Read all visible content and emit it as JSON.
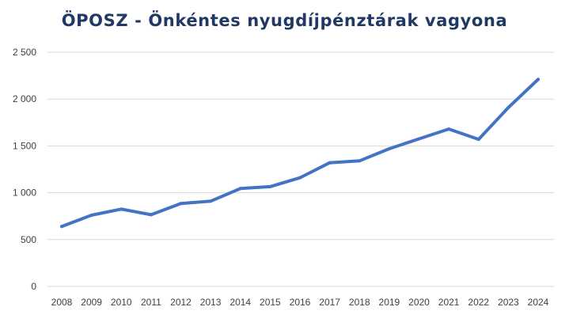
{
  "chart_data": {
    "type": "line",
    "title": "ÖPOSZ - Önkéntes nyugdíjpénztárak vagyona",
    "xlabel": "",
    "ylabel": "",
    "ylim": [
      0,
      2500
    ],
    "yticks": [
      0,
      500,
      1000,
      1500,
      2000,
      2500
    ],
    "ytick_labels": [
      "0",
      "500",
      "1 000",
      "1 500",
      "2 000",
      "2 500"
    ],
    "grid": "horizontal",
    "legend": "none",
    "x": [
      "2008",
      "2009",
      "2010",
      "2011",
      "2012",
      "2013",
      "2014",
      "2015",
      "2016",
      "2017",
      "2018",
      "2019",
      "2020",
      "2021",
      "2022",
      "2023",
      "2024"
    ],
    "series": [
      {
        "color": "#4472c4",
        "values": [
          640,
          760,
          825,
          765,
          885,
          910,
          1045,
          1065,
          1160,
          1320,
          1340,
          1470,
          1575,
          1680,
          1570,
          1910,
          2210
        ]
      }
    ]
  }
}
